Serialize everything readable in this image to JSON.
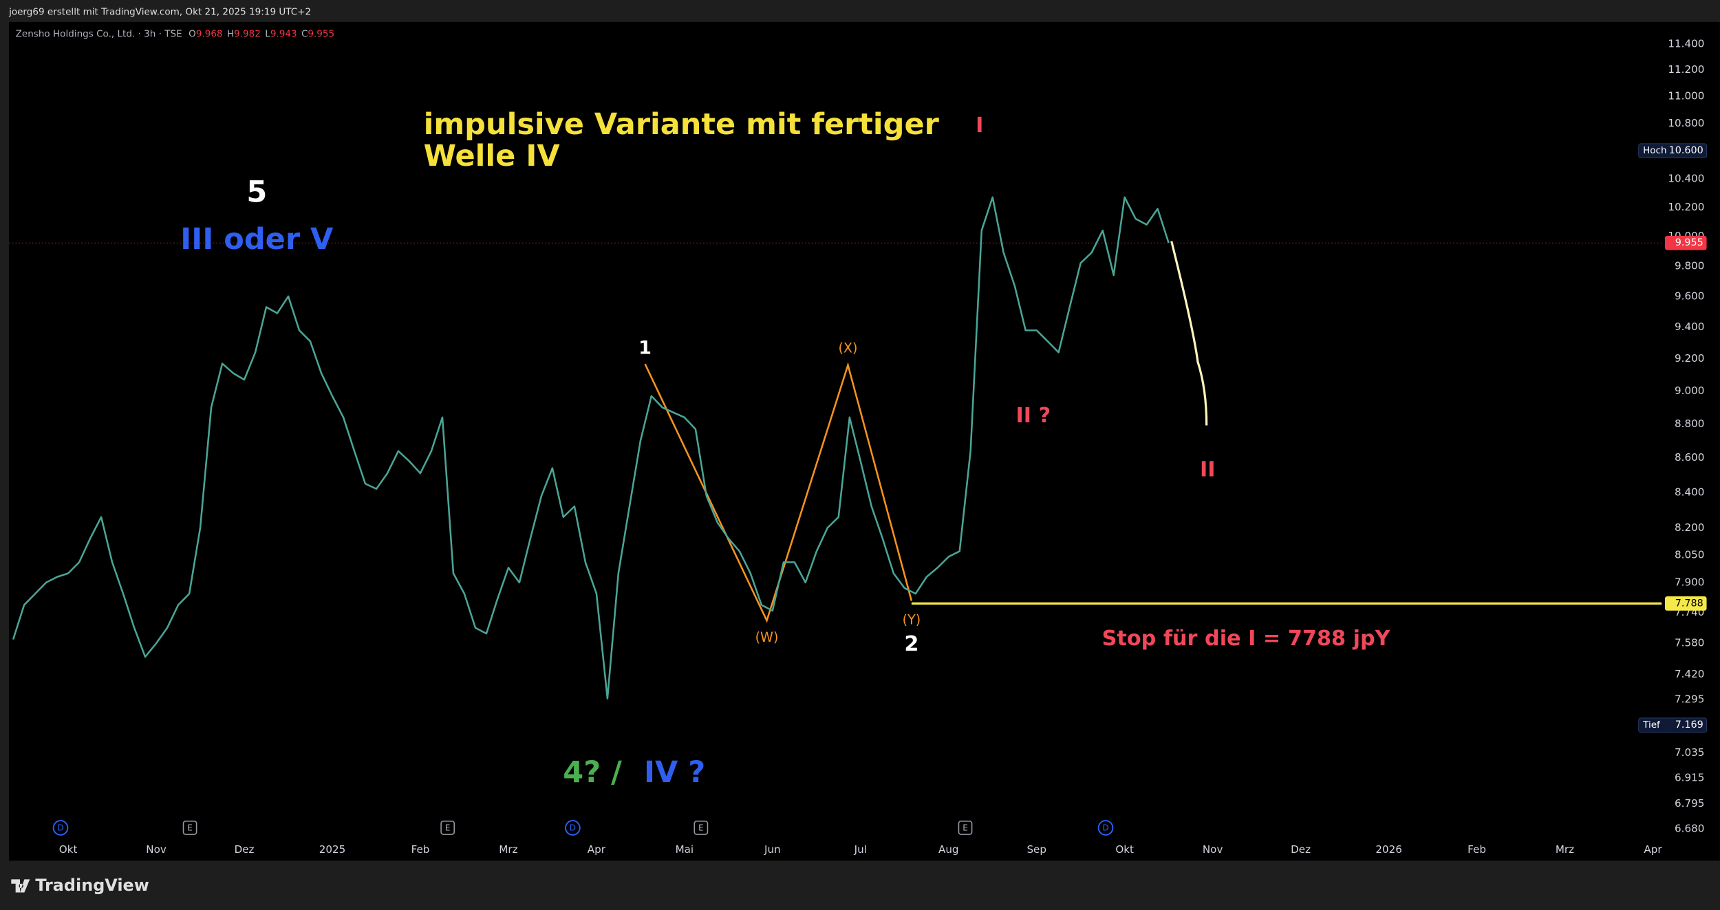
{
  "attribution": "joerg69 erstellt mit TradingView.com, Okt 21, 2025 19:19 UTC+2",
  "footer": {
    "logo": "TradingView"
  },
  "chart_data": {
    "type": "line",
    "symbol": "Zensho Holdings Co., Ltd. · 3h · TSE",
    "ohlc": [
      {
        "key": "O",
        "value": 9968,
        "label": "9.968"
      },
      {
        "key": "H",
        "value": 9982,
        "label": "9.982"
      },
      {
        "key": "L",
        "value": 9943,
        "label": "9.943"
      },
      {
        "key": "C",
        "value": 9955,
        "label": "9.955"
      }
    ],
    "log_scale": true,
    "grid": false,
    "color": "#4aa596",
    "categories": [
      null,
      null,
      null,
      null,
      null,
      "Okt",
      null,
      null,
      null,
      null,
      null,
      null,
      null,
      "Nov",
      null,
      null,
      null,
      null,
      null,
      null,
      null,
      "Dez",
      null,
      null,
      null,
      null,
      null,
      null,
      null,
      "2025",
      null,
      null,
      null,
      null,
      null,
      null,
      null,
      "Feb",
      null,
      null,
      null,
      null,
      null,
      null,
      null,
      "Mrz",
      null,
      null,
      null,
      null,
      null,
      null,
      null,
      "Apr",
      null,
      null,
      null,
      null,
      null,
      null,
      null,
      "Mai",
      null,
      null,
      null,
      null,
      null,
      null,
      null,
      "Jun",
      null,
      null,
      null,
      null,
      null,
      null,
      null,
      "Jul",
      null,
      null,
      null,
      null,
      null,
      null,
      null,
      "Aug",
      null,
      null,
      null,
      null,
      null,
      null,
      null,
      "Sep",
      null,
      null,
      null,
      null,
      null,
      null,
      null,
      "Okt",
      null,
      null,
      null,
      null,
      null,
      null,
      null,
      "Nov",
      null,
      null,
      null,
      null,
      null,
      null,
      null,
      "Dez",
      null,
      null,
      null,
      null,
      null,
      null,
      null,
      "2026",
      null,
      null,
      null,
      null,
      null,
      null,
      null,
      "Feb",
      null,
      null,
      null,
      null,
      null,
      null,
      null,
      "Mrz",
      null,
      null,
      null,
      null,
      null,
      null,
      null,
      "Apr",
      null
    ],
    "values": [
      7600,
      7780,
      7840,
      7900,
      7930,
      7950,
      8010,
      8140,
      8260,
      8010,
      7840,
      7660,
      7510,
      7580,
      7660,
      7780,
      7840,
      8200,
      8900,
      9170,
      9110,
      9070,
      9240,
      9530,
      9490,
      9600,
      9380,
      9310,
      9110,
      8970,
      8840,
      8640,
      8450,
      8420,
      8510,
      8640,
      8580,
      8510,
      8640,
      8840,
      7950,
      7840,
      7660,
      7630,
      7810,
      7980,
      7900,
      8140,
      8380,
      8540,
      8260,
      8320,
      8010,
      7840,
      7300,
      7950,
      8320,
      8700,
      8970,
      8900,
      8870,
      8840,
      8770,
      8380,
      8230,
      8140,
      8070,
      7950,
      7780,
      7750,
      8010,
      8010,
      7900,
      8070,
      8200,
      8260,
      8840,
      8580,
      8320,
      8140,
      7950,
      7870,
      7840,
      7930,
      7980,
      8040,
      8070,
      8640,
      10040,
      10270,
      9890,
      9670,
      9380,
      9380,
      9310,
      9240,
      9530,
      9820,
      9890,
      10040,
      9740,
      10270,
      10120,
      10080,
      10190,
      9955,
      null,
      null,
      null,
      null,
      null,
      null,
      null,
      null,
      null,
      null,
      null,
      null,
      null,
      null,
      null,
      null,
      null,
      null,
      null,
      null,
      null,
      null,
      null,
      null,
      null,
      null,
      null,
      null,
      null,
      null,
      null,
      null,
      null,
      null,
      null,
      null,
      null,
      null,
      null,
      null,
      null,
      null,
      null,
      null,
      null
    ],
    "ylim": [
      6537,
      11572
    ],
    "yticks": [
      {
        "value": 11400,
        "label": "11.400"
      },
      {
        "value": 11200,
        "label": "11.200"
      },
      {
        "value": 11000,
        "label": "11.000"
      },
      {
        "value": 10800,
        "label": "10.800"
      },
      {
        "value": 10600,
        "label": "10.600"
      },
      {
        "value": 10400,
        "label": "10.400"
      },
      {
        "value": 10200,
        "label": "10.200"
      },
      {
        "value": 10000,
        "label": "10.000"
      },
      {
        "value": 9800,
        "label": "9.800"
      },
      {
        "value": 9600,
        "label": "9.600"
      },
      {
        "value": 9400,
        "label": "9.400"
      },
      {
        "value": 9200,
        "label": "9.200"
      },
      {
        "value": 9000,
        "label": "9.000"
      },
      {
        "value": 8800,
        "label": "8.800"
      },
      {
        "value": 8600,
        "label": "8.600"
      },
      {
        "value": 8400,
        "label": "8.400"
      },
      {
        "value": 8200,
        "label": "8.200"
      },
      {
        "value": 8050,
        "label": "8.050"
      },
      {
        "value": 7900,
        "label": "7.900"
      },
      {
        "value": 7740,
        "label": "7.740"
      },
      {
        "value": 7580,
        "label": "7.580"
      },
      {
        "value": 7420,
        "label": "7.420"
      },
      {
        "value": 7295,
        "label": "7.295"
      },
      {
        "value": 7035,
        "label": "7.035"
      },
      {
        "value": 6915,
        "label": "6.915"
      },
      {
        "value": 6795,
        "label": "6.795"
      },
      {
        "value": 6680,
        "label": "6.680"
      }
    ],
    "price_labels": [
      {
        "name": "Hoch",
        "value": 10600,
        "label": "10.600",
        "color": "#0e1a36"
      },
      {
        "value": 9955,
        "label": "9.955",
        "color": "#f23645"
      },
      {
        "value": 7788,
        "label": "7.788",
        "color": "#f5e94a"
      },
      {
        "name": "Tief",
        "value": 7169,
        "label": "7.169",
        "color": "#0e1a36"
      }
    ],
    "stop_line": {
      "value": 7788,
      "color": "#f5e94a"
    },
    "annotations": [
      {
        "text": "impulsive Variante  mit fertiger",
        "color": "#f5e13a"
      },
      {
        "text": "Welle IV",
        "color": "#f5e13a"
      },
      {
        "text": "5",
        "color": "#ffffff"
      },
      {
        "text": "III oder V",
        "color": "#2f5ff0"
      },
      {
        "text": "1",
        "color": "#ffffff"
      },
      {
        "text": "(X)",
        "color": "#f7931e"
      },
      {
        "text": "(W)",
        "color": "#f7931e"
      },
      {
        "text": "(Y)",
        "color": "#f7931e"
      },
      {
        "text": "2",
        "color": "#ffffff"
      },
      {
        "text": "I",
        "color": "#f0485a"
      },
      {
        "text": "II ?",
        "color": "#f0485a"
      },
      {
        "text": "II",
        "color": "#f0485a"
      },
      {
        "text": "4? /",
        "color": "#4caf50"
      },
      {
        "text": "IV ?",
        "color": "#2f5ff0"
      },
      {
        "text": "Stop für die I = 7788 jpY",
        "color": "#f0485a"
      }
    ],
    "events": [
      "D",
      "E",
      "E",
      "D",
      "E",
      "E",
      "D"
    ]
  }
}
